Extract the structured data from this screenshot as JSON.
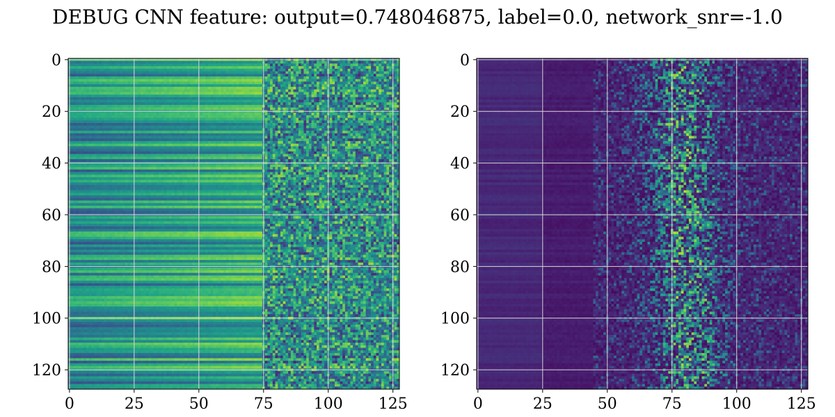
{
  "figure": {
    "title": "DEBUG CNN feature: output=0.748046875, label=0.0, network_snr=-1.0"
  },
  "chart_data": [
    {
      "type": "heatmap",
      "panel": "left",
      "colormap": "viridis",
      "rows": 128,
      "cols": 128,
      "xlim": [
        0,
        127
      ],
      "ylim": [
        127,
        0
      ],
      "x_ticks": [
        0,
        25,
        50,
        75,
        100,
        125
      ],
      "y_ticks": [
        0,
        20,
        40,
        60,
        80,
        100,
        120
      ],
      "grid": true,
      "structure": "horizontal row-constant bands for x < 75, noisy high-variance speckle for x >= 75, brighter overall (green/cyan)"
    },
    {
      "type": "heatmap",
      "panel": "right",
      "colormap": "viridis",
      "rows": 128,
      "cols": 128,
      "xlim": [
        0,
        127
      ],
      "ylim": [
        127,
        0
      ],
      "x_ticks": [
        0,
        25,
        50,
        75,
        100,
        125
      ],
      "y_ticks": [
        0,
        20,
        40,
        60,
        80,
        100,
        120
      ],
      "grid": true,
      "structure": "mostly dark purple, faint banding on left, sparse bright speckles concentrated near x≈75-85"
    }
  ]
}
